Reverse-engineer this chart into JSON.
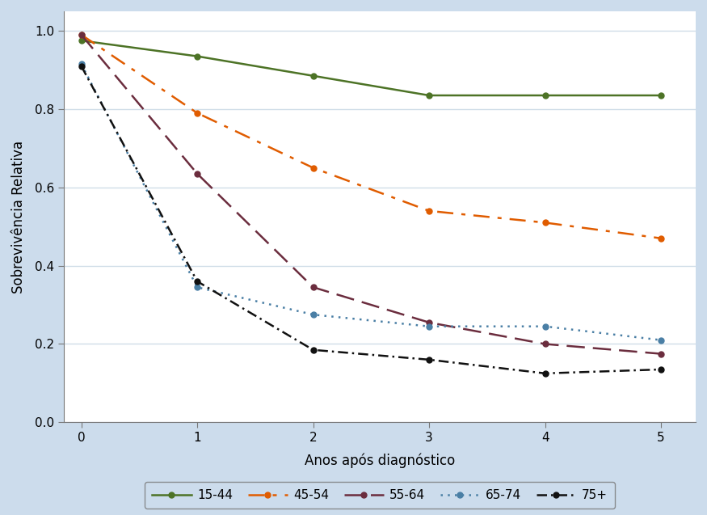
{
  "x": [
    0,
    1,
    2,
    3,
    4,
    5
  ],
  "series": {
    "15-44": {
      "y": [
        0.975,
        0.935,
        0.885,
        0.835,
        0.835,
        0.835
      ],
      "color": "#4d7326"
    },
    "45-54": {
      "y": [
        0.99,
        0.79,
        0.65,
        0.54,
        0.51,
        0.47
      ],
      "color": "#e05c00"
    },
    "55-64": {
      "y": [
        0.99,
        0.635,
        0.345,
        0.255,
        0.2,
        0.175
      ],
      "color": "#6b2d3e"
    },
    "65-74": {
      "y": [
        0.915,
        0.345,
        0.275,
        0.245,
        0.245,
        0.21
      ],
      "color": "#4a7fa5"
    },
    "75+": {
      "y": [
        0.91,
        0.36,
        0.185,
        0.16,
        0.125,
        0.135
      ],
      "color": "#111111"
    }
  },
  "ylabel": "Sobrevivência Relativa",
  "xlabel": "Anos após diagnóstico",
  "ylim": [
    0.0,
    1.05
  ],
  "xlim": [
    -0.15,
    5.3
  ],
  "yticks": [
    0.0,
    0.2,
    0.4,
    0.6,
    0.8,
    1.0
  ],
  "xticks": [
    0,
    1,
    2,
    3,
    4,
    5
  ],
  "fig_background_color": "#ccdcec",
  "plot_background_color": "#ffffff",
  "grid_color": "#d0dde8",
  "legend_order": [
    "15-44",
    "45-54",
    "55-64",
    "65-74",
    "75+"
  ]
}
